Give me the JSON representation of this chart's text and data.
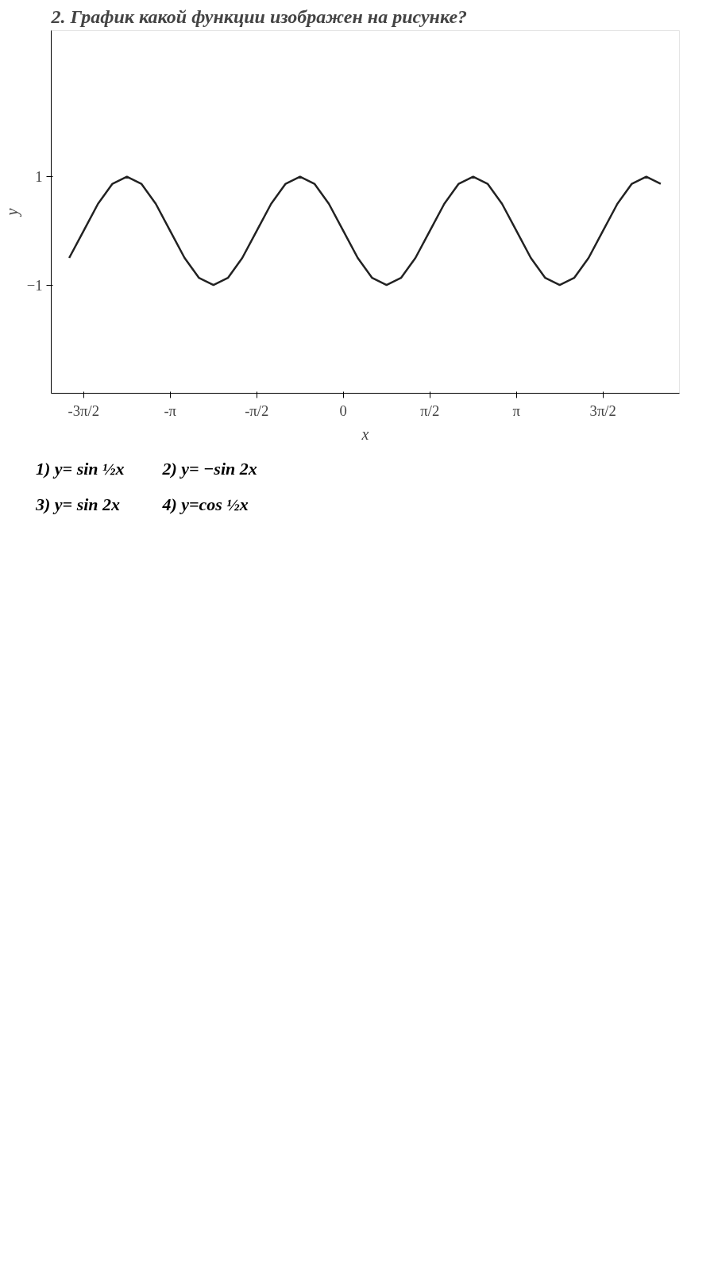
{
  "chart_data": {
    "type": "line",
    "title": "2. График какой функции изображен на рисунке?",
    "xlabel": "x",
    "ylabel": "y",
    "x": [
      -4.974,
      -4.712,
      -4.451,
      -4.189,
      -3.927,
      -3.665,
      -3.403,
      -3.142,
      -2.88,
      -2.618,
      -2.356,
      -2.094,
      -1.833,
      -1.571,
      -1.309,
      -1.047,
      -0.785,
      -0.524,
      -0.262,
      0,
      0.262,
      0.524,
      0.785,
      1.047,
      1.309,
      1.571,
      1.833,
      2.094,
      2.356,
      2.618,
      2.88,
      3.142,
      3.403,
      3.665,
      3.927,
      4.189,
      4.451,
      4.712,
      4.974,
      5.236,
      5.498,
      5.76
    ],
    "series": [
      {
        "color": "#222222",
        "values": [
          -0.5,
          0,
          0.5,
          0.87,
          1,
          0.87,
          0.5,
          0,
          -0.5,
          -0.87,
          -1,
          -0.87,
          -0.5,
          0,
          0.5,
          0.87,
          1,
          0.87,
          0.5,
          0,
          -0.5,
          -0.87,
          -1,
          -0.87,
          -0.5,
          0,
          0.5,
          0.87,
          1,
          0.87,
          0.5,
          0,
          -0.5,
          -0.87,
          -1,
          -0.87,
          -0.5,
          0,
          0.5,
          0.87,
          1,
          0.87
        ]
      }
    ],
    "xlim": [
      -5.3,
      6.1
    ],
    "ylim": [
      -3,
      3.7
    ],
    "xticks": [
      {
        "value": -4.712,
        "label": "-3π/2"
      },
      {
        "value": -3.142,
        "label": "-π"
      },
      {
        "value": -1.571,
        "label": "-π/2"
      },
      {
        "value": 0,
        "label": "0"
      },
      {
        "value": 1.571,
        "label": "π/2"
      },
      {
        "value": 3.142,
        "label": "π"
      },
      {
        "value": 4.712,
        "label": "3π/2"
      }
    ],
    "yticks": [
      -1,
      1
    ],
    "grid": false,
    "marker": "none",
    "line_style": "solid",
    "annotations": [
      "1) y= sin ½x",
      "2) y= −sin 2x",
      "3) y= sin 2x",
      "4) y=cos ½x"
    ]
  }
}
